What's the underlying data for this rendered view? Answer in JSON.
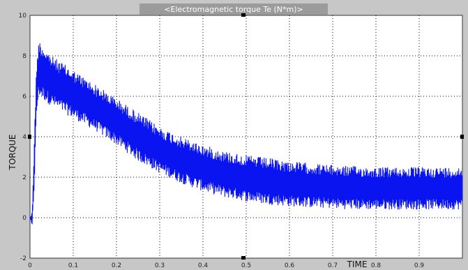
{
  "colors": {
    "frame": "#c7c7c7",
    "plot_background": "#ffffff",
    "trace": "#0a14f0",
    "grid": "#000000",
    "title_bar": "#9b9b9b"
  },
  "chart_data": {
    "type": "line",
    "title": "<Electromagnetic torque Te (N*m)>",
    "xlabel": "TIME",
    "ylabel": "TORQUE",
    "xlim": [
      0,
      1.0
    ],
    "ylim": [
      -2,
      10
    ],
    "grid": true,
    "xticks": [
      0,
      0.1,
      0.2,
      0.3,
      0.4,
      0.5,
      0.6,
      0.7,
      0.8,
      0.9
    ],
    "xtick_labels": [
      "0",
      "0.1",
      "0.2",
      "0.3",
      "0.4",
      "0.5",
      "0.6",
      "0.7",
      "0.8",
      "0.9"
    ],
    "yticks": [
      -2,
      0,
      2,
      4,
      6,
      8,
      10
    ],
    "ytick_labels": [
      "-2",
      "0",
      "2",
      "4",
      "6",
      "8",
      "10"
    ],
    "series": [
      {
        "upper_envelope": {
          "x": [
            0.0,
            0.005,
            0.01,
            0.015,
            0.02,
            0.05,
            0.1,
            0.15,
            0.2,
            0.25,
            0.3,
            0.35,
            0.4,
            0.45,
            0.5,
            0.55,
            0.6,
            0.65,
            0.7,
            0.75,
            0.8,
            0.85,
            0.9,
            0.95,
            1.0
          ],
          "y": [
            0.0,
            0.3,
            4.0,
            7.5,
            8.8,
            8.0,
            7.3,
            6.6,
            5.9,
            5.2,
            4.5,
            4.0,
            3.6,
            3.3,
            3.1,
            2.95,
            2.8,
            2.7,
            2.6,
            2.55,
            2.5,
            2.5,
            2.5,
            2.5,
            2.5
          ]
        },
        "lower_envelope": {
          "x": [
            0.0,
            0.005,
            0.01,
            0.015,
            0.02,
            0.05,
            0.1,
            0.15,
            0.2,
            0.25,
            0.3,
            0.35,
            0.4,
            0.45,
            0.5,
            0.55,
            0.6,
            0.65,
            0.7,
            0.75,
            0.8,
            0.85,
            0.9,
            0.95,
            1.0
          ],
          "y": [
            0.0,
            -0.5,
            1.5,
            5.0,
            6.0,
            5.5,
            4.9,
            4.3,
            3.6,
            2.8,
            2.2,
            1.7,
            1.3,
            1.0,
            0.8,
            0.65,
            0.55,
            0.5,
            0.45,
            0.4,
            0.4,
            0.4,
            0.4,
            0.4,
            0.4
          ]
        }
      }
    ]
  }
}
